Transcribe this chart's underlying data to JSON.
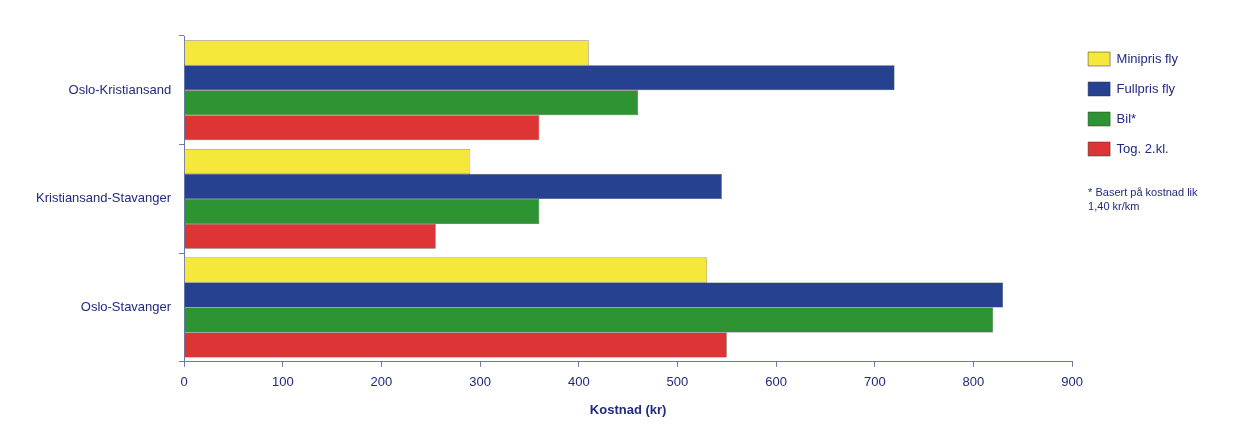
{
  "chart_data": {
    "type": "bar",
    "orientation": "horizontal",
    "xlabel": "Kostnad (kr)",
    "categories": [
      "Oslo-Kristiansand",
      "Kristiansand-Stavanger",
      "Oslo-Stavanger"
    ],
    "series": [
      {
        "name": "Minipris fly",
        "color": "#f5e83a",
        "values": [
          410,
          290,
          530
        ]
      },
      {
        "name": "Fullpris fly",
        "color": "#25418f",
        "values": [
          720,
          545,
          830
        ]
      },
      {
        "name": "Bil*",
        "color": "#2e9433",
        "values": [
          460,
          360,
          820
        ]
      },
      {
        "name": "Tog. 2.kl.",
        "color": "#dd3535",
        "values": [
          360,
          255,
          550
        ]
      }
    ],
    "xlim": [
      0,
      900
    ],
    "xticks": [
      0,
      100,
      200,
      300,
      400,
      500,
      600,
      700,
      800,
      900
    ],
    "grid": false,
    "legend": "right",
    "annotations": [
      "* Basert på kostnad lik 1,40 kr/km"
    ]
  }
}
